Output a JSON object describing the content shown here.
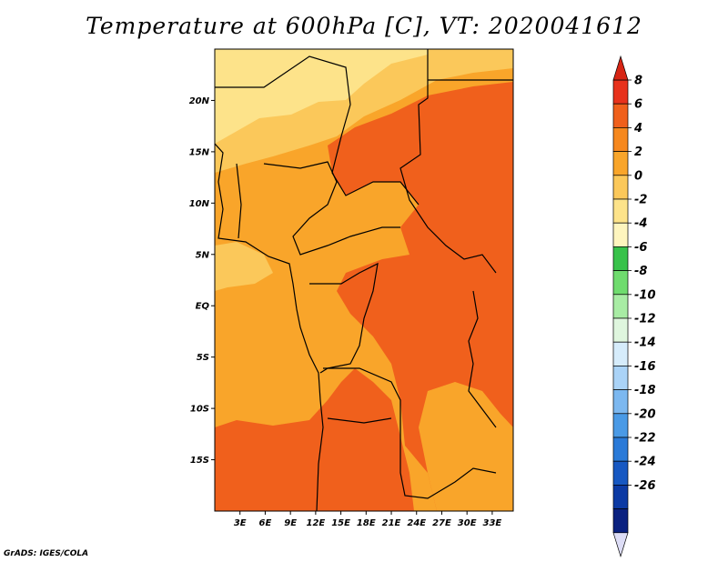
{
  "title": "Temperature at 600hPa [C], VT: 2020041612",
  "credit": "GrADS: IGES/COLA",
  "map": {
    "lon_range": [
      0,
      35.5
    ],
    "lat_range": [
      -20,
      25
    ],
    "lat_ticks": [
      {
        "value": 20,
        "label": "20N"
      },
      {
        "value": 15,
        "label": "15N"
      },
      {
        "value": 10,
        "label": "10N"
      },
      {
        "value": 5,
        "label": "5N"
      },
      {
        "value": 0,
        "label": "EQ"
      },
      {
        "value": -5,
        "label": "5S"
      },
      {
        "value": -10,
        "label": "10S"
      },
      {
        "value": -15,
        "label": "15S"
      }
    ],
    "lon_ticks": [
      {
        "value": 3,
        "label": "3E"
      },
      {
        "value": 6,
        "label": "6E"
      },
      {
        "value": 9,
        "label": "9E"
      },
      {
        "value": 12,
        "label": "12E"
      },
      {
        "value": 15,
        "label": "15E"
      },
      {
        "value": 18,
        "label": "18E"
      },
      {
        "value": 21,
        "label": "21E"
      },
      {
        "value": 24,
        "label": "24E"
      },
      {
        "value": 27,
        "label": "27E"
      },
      {
        "value": 30,
        "label": "30E"
      },
      {
        "value": 33,
        "label": "33E"
      }
    ]
  },
  "colorbar": {
    "labels": [
      "8",
      "6",
      "4",
      "2",
      "0",
      "-2",
      "-4",
      "-6",
      "-8",
      "-10",
      "-12",
      "-14",
      "-16",
      "-18",
      "-20",
      "-22",
      "-24",
      "-26"
    ],
    "colors": [
      "#e8321c",
      "#f0601c",
      "#f6881e",
      "#f9a52a",
      "#fbc85a",
      "#fde38a",
      "#fef5be",
      "#38c24a",
      "#6fdc6e",
      "#a8eca4",
      "#dff6de",
      "#d6ecfb",
      "#aad3f7",
      "#7cb8f0",
      "#4a9ae6",
      "#2a7ad8",
      "#1758c2",
      "#0c3aa4",
      "#0a2180"
    ],
    "top_color": "#d72514",
    "bottom_color": "#ddddf6"
  }
}
